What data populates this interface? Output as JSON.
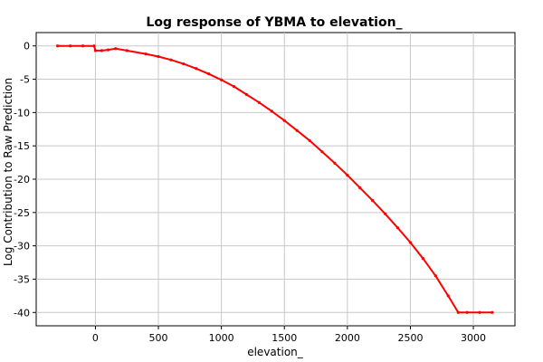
{
  "chart_data": {
    "type": "line",
    "title": "Log response of YBMA to elevation_",
    "xlabel": "elevation_",
    "ylabel": "Log Contribution to Raw Prediction",
    "xlim": [
      -470,
      3330
    ],
    "ylim": [
      -42,
      2
    ],
    "x_ticks": [
      0,
      500,
      1000,
      1500,
      2000,
      2500,
      3000
    ],
    "x_tick_labels": [
      "0",
      "500",
      "1000",
      "1500",
      "2000",
      "2500",
      "3000"
    ],
    "y_ticks": [
      0,
      -5,
      -10,
      -15,
      -20,
      -25,
      -30,
      -35,
      -40
    ],
    "y_tick_labels": [
      "0",
      "-5",
      "-10",
      "-15",
      "-20",
      "-25",
      "-30",
      "-35",
      "-40"
    ],
    "grid": true,
    "legend": "none",
    "series": [
      {
        "color": "#ff0000",
        "x": [
          -300,
          -200,
          -100,
          -10,
          0,
          50,
          100,
          160,
          250,
          400,
          500,
          600,
          700,
          800,
          900,
          1000,
          1100,
          1200,
          1300,
          1400,
          1500,
          1600,
          1700,
          1800,
          1900,
          2000,
          2100,
          2200,
          2300,
          2400,
          2500,
          2600,
          2700,
          2800,
          2880,
          2950,
          3050,
          3150
        ],
        "y": [
          0,
          0,
          0,
          0,
          -0.7,
          -0.7,
          -0.6,
          -0.4,
          -0.7,
          -1.2,
          -1.6,
          -2.1,
          -2.7,
          -3.4,
          -4.2,
          -5.1,
          -6.1,
          -7.3,
          -8.5,
          -9.8,
          -11.2,
          -12.7,
          -14.2,
          -15.9,
          -17.6,
          -19.4,
          -21.3,
          -23.2,
          -25.2,
          -27.3,
          -29.5,
          -31.9,
          -34.5,
          -37.5,
          -40,
          -40,
          -40,
          -40
        ]
      }
    ]
  }
}
